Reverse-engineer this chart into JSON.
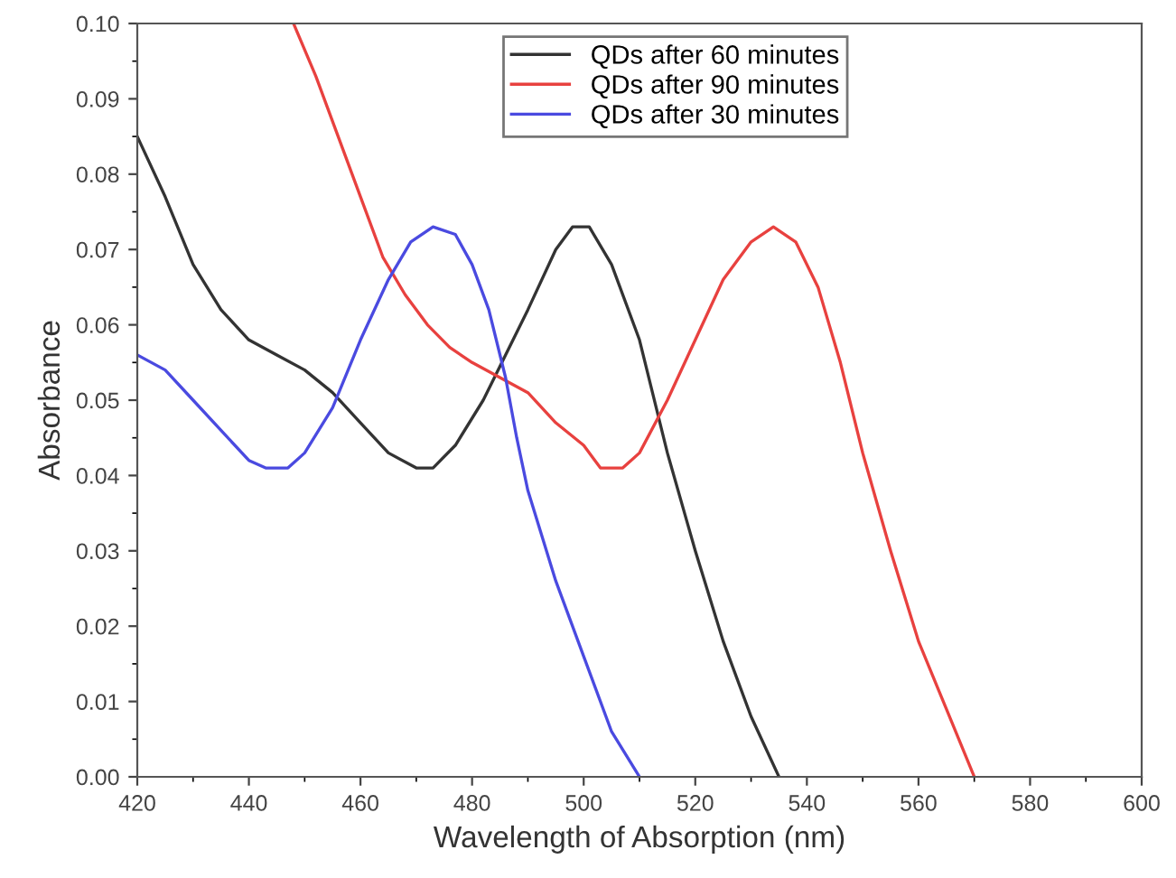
{
  "chart_data": {
    "type": "line",
    "xlabel": "Wavelength of Absorption (nm)",
    "ylabel": "Absorbance",
    "xlim": [
      420,
      600
    ],
    "xticks": [
      420,
      440,
      460,
      480,
      500,
      520,
      540,
      560,
      580,
      600
    ],
    "ylim": [
      0,
      0.1
    ],
    "yticks": [
      {
        "value": 0,
        "label": "0.00"
      },
      {
        "value": 0.01,
        "label": "0.01"
      },
      {
        "value": 0.02,
        "label": "0.02"
      },
      {
        "value": 0.03,
        "label": "0.03"
      },
      {
        "value": 0.04,
        "label": "0.04"
      },
      {
        "value": 0.05,
        "label": "0.05"
      },
      {
        "value": 0.06,
        "label": "0.06"
      },
      {
        "value": 0.07,
        "label": "0.07"
      },
      {
        "value": 0.08,
        "label": "0.08"
      },
      {
        "value": 0.09,
        "label": "0.09"
      },
      {
        "value": 0.1,
        "label": "0.10"
      }
    ],
    "grid": false,
    "legend": "top right",
    "marker": "none",
    "line_style": "solid",
    "series": [
      {
        "name": "QDs after 60 minutes",
        "color": "#333333",
        "x": [
          420,
          425,
          430,
          435,
          440,
          445,
          450,
          455,
          460,
          465,
          470,
          473,
          477,
          482,
          486,
          490,
          495,
          498,
          501,
          505,
          510,
          515,
          520,
          525,
          530,
          535
        ],
        "values": [
          0.085,
          0.077,
          0.068,
          0.062,
          0.058,
          0.056,
          0.054,
          0.051,
          0.047,
          0.043,
          0.041,
          0.041,
          0.044,
          0.05,
          0.056,
          0.062,
          0.07,
          0.073,
          0.073,
          0.068,
          0.058,
          0.043,
          0.03,
          0.018,
          0.008,
          0.0
        ]
      },
      {
        "name": "QDs after 90 minutes",
        "color": "#e8413f",
        "x": [
          448,
          452,
          456,
          460,
          464,
          468,
          472,
          476,
          480,
          485,
          490,
          495,
          500,
          503,
          507,
          510,
          515,
          520,
          525,
          530,
          534,
          538,
          542,
          546,
          550,
          555,
          560,
          565,
          570
        ],
        "values": [
          0.1,
          0.093,
          0.085,
          0.077,
          0.069,
          0.064,
          0.06,
          0.057,
          0.055,
          0.053,
          0.051,
          0.047,
          0.044,
          0.041,
          0.041,
          0.043,
          0.05,
          0.058,
          0.066,
          0.071,
          0.073,
          0.071,
          0.065,
          0.055,
          0.043,
          0.03,
          0.018,
          0.009,
          0.0
        ]
      },
      {
        "name": "QDs after 30 minutes",
        "color": "#4a4ae0",
        "x": [
          420,
          425,
          430,
          435,
          440,
          443,
          447,
          450,
          455,
          460,
          465,
          469,
          473,
          477,
          480,
          483,
          486,
          488,
          490,
          495,
          500,
          505,
          510
        ],
        "values": [
          0.056,
          0.054,
          0.05,
          0.046,
          0.042,
          0.041,
          0.041,
          0.043,
          0.049,
          0.058,
          0.066,
          0.071,
          0.073,
          0.072,
          0.068,
          0.062,
          0.053,
          0.045,
          0.038,
          0.026,
          0.016,
          0.006,
          0.0
        ]
      }
    ]
  }
}
